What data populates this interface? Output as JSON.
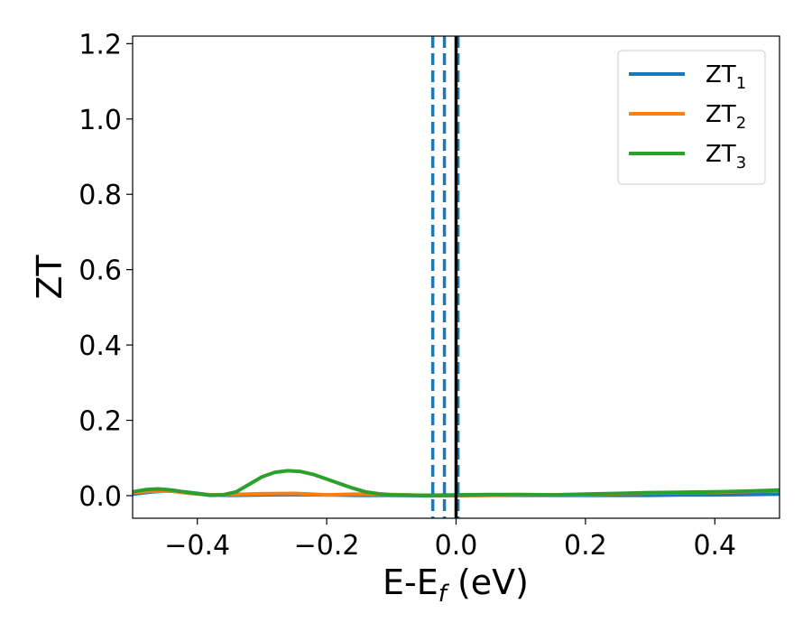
{
  "chart_data": {
    "type": "line",
    "xlabel": {
      "main": "E-E",
      "sub": "f",
      "unit": " (eV)"
    },
    "ylabel": "ZT",
    "xlim": [
      -0.5,
      0.5
    ],
    "ylim": [
      -0.06,
      1.22
    ],
    "xticks": [
      -0.4,
      -0.2,
      0.0,
      0.2,
      0.4
    ],
    "xtick_labels": [
      "−0.4",
      "−0.2",
      "0.0",
      "0.2",
      "0.4"
    ],
    "yticks": [
      0.0,
      0.2,
      0.4,
      0.6,
      0.8,
      1.0,
      1.2
    ],
    "ytick_labels": [
      "0.0",
      "0.2",
      "0.4",
      "0.6",
      "0.8",
      "1.0",
      "1.2"
    ],
    "legend_position": "top-right",
    "series": [
      {
        "name": "ZT",
        "name_sub": "1",
        "color": "#1f77b4",
        "x": [
          -0.5,
          -0.47,
          -0.44,
          -0.41,
          -0.38,
          -0.35,
          -0.3,
          -0.25,
          -0.2,
          -0.15,
          -0.1,
          -0.05,
          0.0,
          0.05,
          0.1,
          0.15,
          0.2,
          0.25,
          0.3,
          0.35,
          0.4,
          0.45,
          0.5
        ],
        "y": [
          0.004,
          0.01,
          0.013,
          0.008,
          0.002,
          0.001,
          0.002,
          0.003,
          0.002,
          0.001,
          0.001,
          0.0,
          0.0,
          0.001,
          0.001,
          0.001,
          0.001,
          0.001,
          0.001,
          0.002,
          0.002,
          0.003,
          0.004
        ]
      },
      {
        "name": "ZT",
        "name_sub": "2",
        "color": "#ff7f0e",
        "x": [
          -0.5,
          -0.47,
          -0.44,
          -0.41,
          -0.38,
          -0.35,
          -0.3,
          -0.25,
          -0.2,
          -0.15,
          -0.1,
          -0.05,
          0.0,
          0.05,
          0.1,
          0.15,
          0.2,
          0.25,
          0.3,
          0.35,
          0.4,
          0.45,
          0.5
        ],
        "y": [
          0.008,
          0.012,
          0.012,
          0.006,
          0.002,
          0.003,
          0.005,
          0.006,
          0.002,
          0.004,
          0.003,
          0.001,
          0.001,
          0.001,
          0.002,
          0.002,
          0.003,
          0.005,
          0.007,
          0.008,
          0.009,
          0.011,
          0.014
        ]
      },
      {
        "name": "ZT",
        "name_sub": "3",
        "color": "#2ca02c",
        "x": [
          -0.5,
          -0.48,
          -0.46,
          -0.44,
          -0.42,
          -0.4,
          -0.38,
          -0.36,
          -0.34,
          -0.32,
          -0.3,
          -0.28,
          -0.26,
          -0.24,
          -0.22,
          -0.2,
          -0.18,
          -0.16,
          -0.14,
          -0.12,
          -0.1,
          -0.05,
          0.0,
          0.05,
          0.1,
          0.15,
          0.2,
          0.25,
          0.3,
          0.35,
          0.4,
          0.45,
          0.5
        ],
        "y": [
          0.01,
          0.016,
          0.018,
          0.015,
          0.01,
          0.005,
          0.001,
          0.002,
          0.01,
          0.03,
          0.05,
          0.062,
          0.066,
          0.064,
          0.056,
          0.044,
          0.032,
          0.02,
          0.01,
          0.005,
          0.002,
          0.001,
          0.002,
          0.003,
          0.003,
          0.002,
          0.004,
          0.006,
          0.008,
          0.009,
          0.01,
          0.012,
          0.015
        ]
      }
    ],
    "vlines": [
      {
        "x": -0.036,
        "color": "#1f77b4",
        "style": "dashed"
      },
      {
        "x": -0.018,
        "color": "#1f77b4",
        "style": "dashed"
      },
      {
        "x": 0.003,
        "color": "#1f77b4",
        "style": "dashed"
      },
      {
        "x": 0.0,
        "color": "#000000",
        "style": "solid"
      }
    ]
  }
}
